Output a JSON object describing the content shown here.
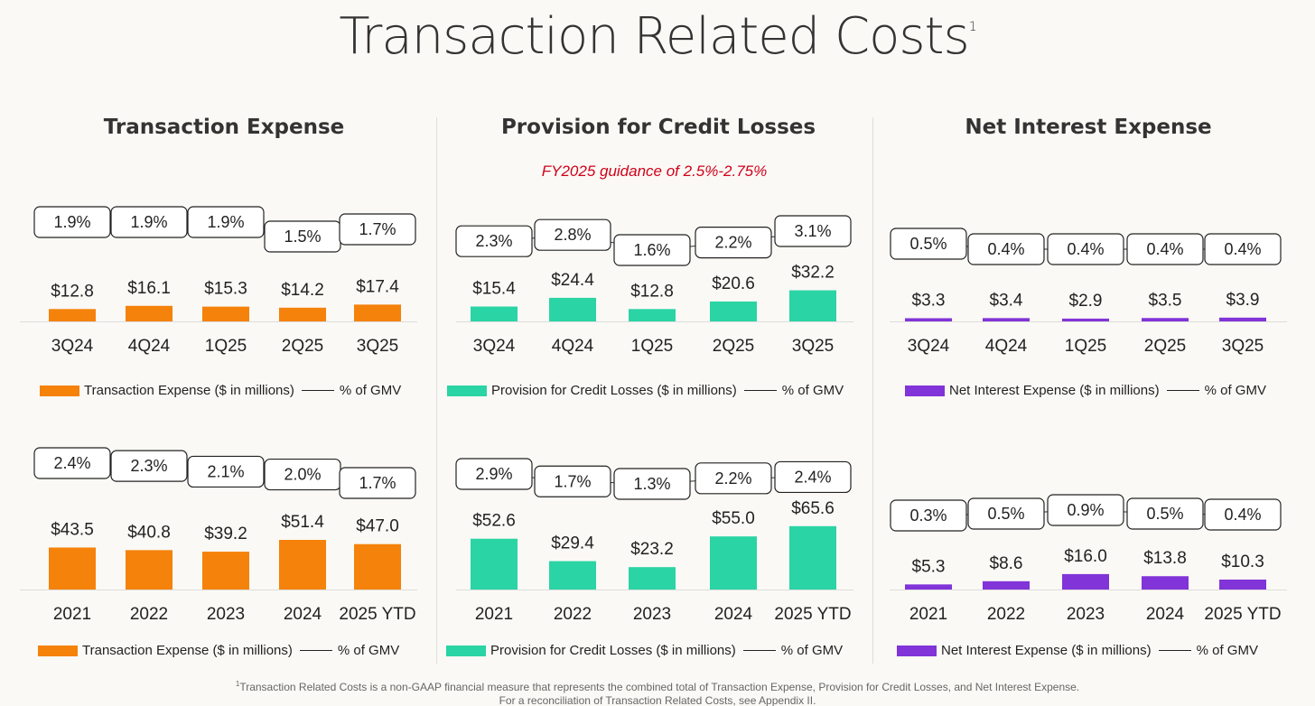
{
  "title": "Transaction Related Costs",
  "title_footnote_mark": "1",
  "footnote": {
    "mark": "1",
    "line1": "Transaction Related Costs is a non-GAAP financial measure that represents the combined total of Transaction Expense, Provision for Credit Losses, and Net Interest Expense.",
    "line2": "For a reconciliation of Transaction Related Costs, see Appendix II."
  },
  "sections": [
    {
      "title": "Transaction Expense"
    },
    {
      "title": "Provision for Credit Losses",
      "guidance": "FY2025 guidance of 2.5%-2.75%"
    },
    {
      "title": "Net Interest Expense"
    }
  ],
  "chart_data": [
    {
      "type": "bar",
      "name": "transaction-quarterly",
      "color": "#f5820b",
      "categories": [
        "3Q24",
        "4Q24",
        "1Q25",
        "2Q25",
        "3Q25"
      ],
      "values": [
        12.8,
        16.1,
        15.3,
        14.2,
        17.4
      ],
      "value_labels": [
        "$12.8",
        "$16.1",
        "$15.3",
        "$14.2",
        "$17.4"
      ],
      "pct_of_gmv": [
        1.9,
        1.9,
        1.9,
        1.5,
        1.7
      ],
      "pct_labels": [
        "1.9%",
        "1.9%",
        "1.9%",
        "1.5%",
        "1.7%"
      ],
      "legend": {
        "bar": "Transaction Expense ($ in millions)",
        "line": "% of GMV"
      }
    },
    {
      "type": "bar",
      "name": "provision-quarterly",
      "color": "#2bd4a4",
      "categories": [
        "3Q24",
        "4Q24",
        "1Q25",
        "2Q25",
        "3Q25"
      ],
      "values": [
        15.4,
        24.4,
        12.8,
        20.6,
        32.2
      ],
      "value_labels": [
        "$15.4",
        "$24.4",
        "$12.8",
        "$20.6",
        "$32.2"
      ],
      "pct_of_gmv": [
        2.3,
        2.8,
        1.6,
        2.2,
        3.1
      ],
      "pct_labels": [
        "2.3%",
        "2.8%",
        "1.6%",
        "2.2%",
        "3.1%"
      ],
      "legend": {
        "bar": "Provision for Credit Losses ($ in millions)",
        "line": "% of GMV"
      }
    },
    {
      "type": "bar",
      "name": "net-interest-quarterly",
      "color": "#8134d8",
      "categories": [
        "3Q24",
        "4Q24",
        "1Q25",
        "2Q25",
        "3Q25"
      ],
      "values": [
        3.3,
        3.4,
        2.9,
        3.5,
        3.9
      ],
      "value_labels": [
        "$3.3",
        "$3.4",
        "$2.9",
        "$3.5",
        "$3.9"
      ],
      "pct_of_gmv": [
        0.5,
        0.4,
        0.4,
        0.4,
        0.4
      ],
      "pct_labels": [
        "0.5%",
        "0.4%",
        "0.4%",
        "0.4%",
        "0.4%"
      ],
      "legend": {
        "bar": "Net Interest Expense ($ in millions)",
        "line": "% of GMV"
      }
    },
    {
      "type": "bar",
      "name": "transaction-annual",
      "color": "#f5820b",
      "categories": [
        "2021",
        "2022",
        "2023",
        "2024",
        "2025 YTD"
      ],
      "values": [
        43.5,
        40.8,
        39.2,
        51.4,
        47.0
      ],
      "value_labels": [
        "$43.5",
        "$40.8",
        "$39.2",
        "$51.4",
        "$47.0"
      ],
      "pct_of_gmv": [
        2.4,
        2.3,
        2.1,
        2.0,
        1.7
      ],
      "pct_labels": [
        "2.4%",
        "2.3%",
        "2.1%",
        "2.0%",
        "1.7%"
      ],
      "legend": {
        "bar": "Transaction Expense ($ in millions)",
        "line": "% of GMV"
      }
    },
    {
      "type": "bar",
      "name": "provision-annual",
      "color": "#2bd4a4",
      "categories": [
        "2021",
        "2022",
        "2023",
        "2024",
        "2025 YTD"
      ],
      "values": [
        52.6,
        29.4,
        23.2,
        55.0,
        65.6
      ],
      "value_labels": [
        "$52.6",
        "$29.4",
        "$23.2",
        "$55.0",
        "$65.6"
      ],
      "pct_of_gmv": [
        2.9,
        1.7,
        1.3,
        2.2,
        2.4
      ],
      "pct_labels": [
        "2.9%",
        "1.7%",
        "1.3%",
        "2.2%",
        "2.4%"
      ],
      "legend": {
        "bar": "Provision for Credit Losses ($ in millions)",
        "line": "% of GMV"
      }
    },
    {
      "type": "bar",
      "name": "net-interest-annual",
      "color": "#8134d8",
      "categories": [
        "2021",
        "2022",
        "2023",
        "2024",
        "2025 YTD"
      ],
      "values": [
        5.3,
        8.6,
        16.0,
        13.8,
        10.3
      ],
      "value_labels": [
        "$5.3",
        "$8.6",
        "$16.0",
        "$13.8",
        "$10.3"
      ],
      "pct_of_gmv": [
        0.3,
        0.5,
        0.9,
        0.5,
        0.4
      ],
      "pct_labels": [
        "0.3%",
        "0.5%",
        "0.9%",
        "0.5%",
        "0.4%"
      ],
      "legend": {
        "bar": "Net Interest Expense ($ in millions)",
        "line": "% of GMV"
      }
    }
  ]
}
